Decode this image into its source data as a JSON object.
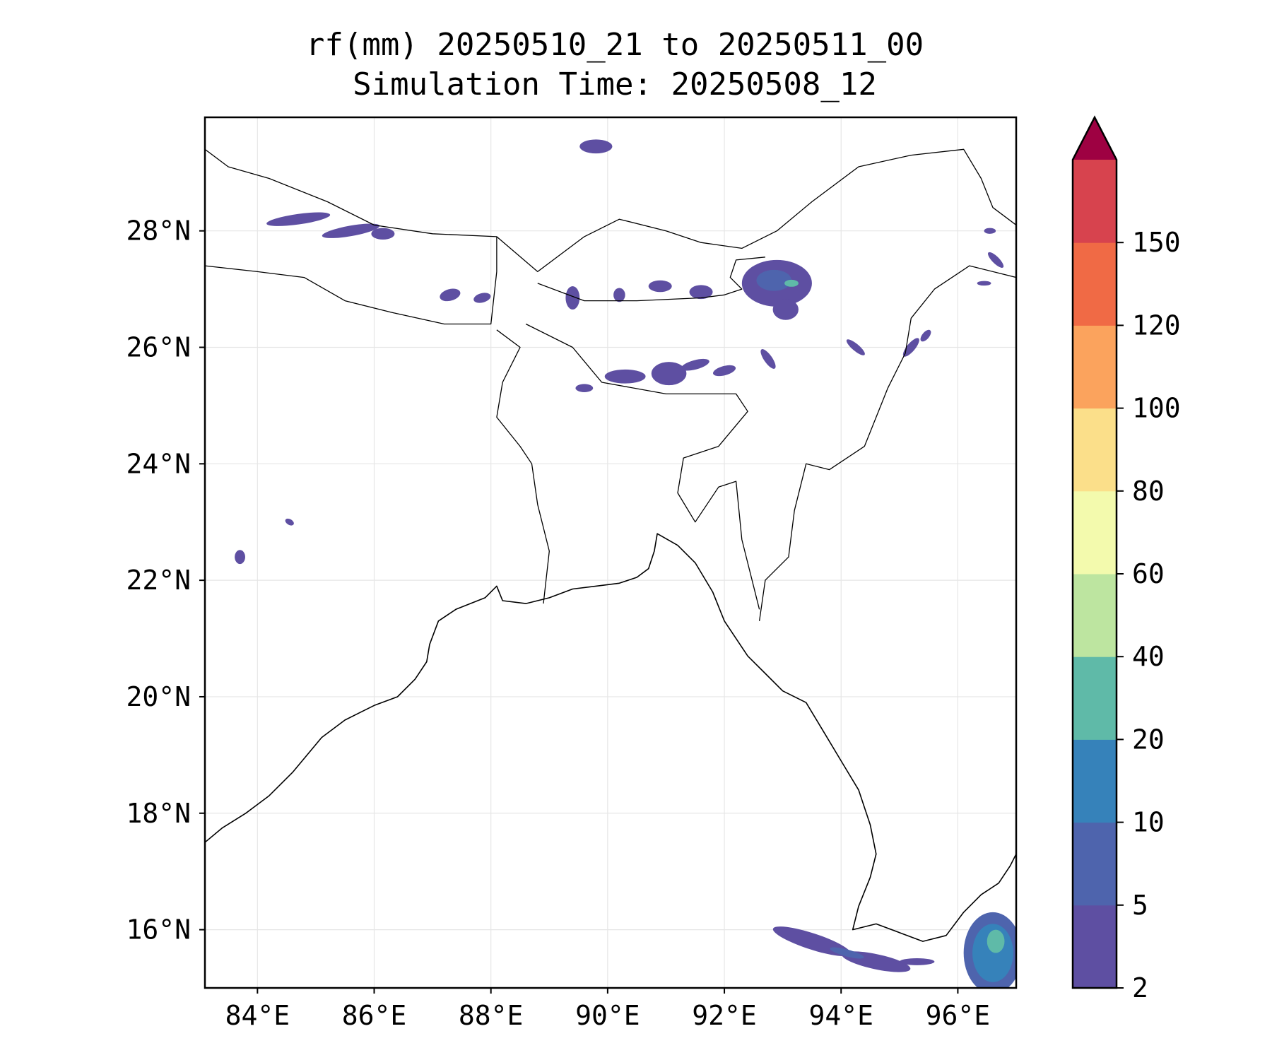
{
  "title": {
    "line1": "rf(mm) 20250510_21 to 20250511_00",
    "line2": "Simulation Time: 20250508_12"
  },
  "map": {
    "lon_range": [
      83.1,
      97.0
    ],
    "lat_range": [
      15.0,
      29.95
    ],
    "gridlines": true,
    "x_ticks": [
      {
        "value": 84,
        "label": "84°E"
      },
      {
        "value": 86,
        "label": "86°E"
      },
      {
        "value": 88,
        "label": "88°E"
      },
      {
        "value": 90,
        "label": "90°E"
      },
      {
        "value": 92,
        "label": "92°E"
      },
      {
        "value": 94,
        "label": "94°E"
      },
      {
        "value": 96,
        "label": "96°E"
      }
    ],
    "y_ticks": [
      {
        "value": 16,
        "label": "16°N"
      },
      {
        "value": 18,
        "label": "18°N"
      },
      {
        "value": 20,
        "label": "20°N"
      },
      {
        "value": 22,
        "label": "22°N"
      },
      {
        "value": 24,
        "label": "24°N"
      },
      {
        "value": 26,
        "label": "26°N"
      },
      {
        "value": 28,
        "label": "28°N"
      }
    ],
    "coastline": [
      [
        83.1,
        17.5
      ],
      [
        83.4,
        17.75
      ],
      [
        83.8,
        18.0
      ],
      [
        84.2,
        18.3
      ],
      [
        84.6,
        18.7
      ],
      [
        85.1,
        19.3
      ],
      [
        85.5,
        19.6
      ],
      [
        86.0,
        19.85
      ],
      [
        86.4,
        20.0
      ],
      [
        86.7,
        20.3
      ],
      [
        86.9,
        20.6
      ],
      [
        86.95,
        20.9
      ],
      [
        87.1,
        21.3
      ],
      [
        87.4,
        21.5
      ],
      [
        87.9,
        21.7
      ],
      [
        88.1,
        21.9
      ],
      [
        88.2,
        21.65
      ],
      [
        88.6,
        21.6
      ],
      [
        89.0,
        21.7
      ],
      [
        89.4,
        21.85
      ],
      [
        89.8,
        21.9
      ],
      [
        90.2,
        21.95
      ],
      [
        90.5,
        22.05
      ],
      [
        90.7,
        22.2
      ],
      [
        90.8,
        22.5
      ],
      [
        90.85,
        22.8
      ],
      [
        91.2,
        22.6
      ],
      [
        91.5,
        22.3
      ],
      [
        91.8,
        21.8
      ],
      [
        92.0,
        21.3
      ],
      [
        92.2,
        21.0
      ],
      [
        92.4,
        20.7
      ],
      [
        92.7,
        20.4
      ],
      [
        93.0,
        20.1
      ],
      [
        93.4,
        19.9
      ],
      [
        93.7,
        19.4
      ],
      [
        94.0,
        18.9
      ],
      [
        94.3,
        18.4
      ],
      [
        94.5,
        17.8
      ],
      [
        94.6,
        17.3
      ],
      [
        94.5,
        16.9
      ],
      [
        94.3,
        16.4
      ],
      [
        94.2,
        16.0
      ],
      [
        94.6,
        16.1
      ],
      [
        95.0,
        15.95
      ],
      [
        95.4,
        15.8
      ],
      [
        95.8,
        15.9
      ],
      [
        96.1,
        16.3
      ],
      [
        96.4,
        16.6
      ],
      [
        96.7,
        16.8
      ],
      [
        96.9,
        17.1
      ],
      [
        97.0,
        17.3
      ]
    ],
    "borders": [
      [
        [
          83.1,
          29.4
        ],
        [
          83.5,
          29.1
        ],
        [
          84.2,
          28.9
        ],
        [
          85.2,
          28.5
        ],
        [
          86.0,
          28.1
        ],
        [
          87.0,
          27.95
        ],
        [
          88.1,
          27.9
        ],
        [
          88.8,
          27.3
        ],
        [
          89.6,
          27.9
        ],
        [
          90.2,
          28.2
        ],
        [
          91.0,
          28.0
        ],
        [
          91.6,
          27.8
        ],
        [
          92.3,
          27.7
        ],
        [
          92.9,
          28.0
        ],
        [
          93.5,
          28.5
        ],
        [
          94.3,
          29.1
        ],
        [
          95.2,
          29.3
        ],
        [
          96.1,
          29.4
        ],
        [
          96.4,
          28.9
        ],
        [
          96.6,
          28.4
        ],
        [
          97.0,
          28.1
        ]
      ],
      [
        [
          83.1,
          27.4
        ],
        [
          84.0,
          27.3
        ],
        [
          84.8,
          27.2
        ],
        [
          85.5,
          26.8
        ],
        [
          86.3,
          26.6
        ],
        [
          87.2,
          26.4
        ],
        [
          88.0,
          26.4
        ],
        [
          88.1,
          27.3
        ],
        [
          88.1,
          27.9
        ]
      ],
      [
        [
          88.8,
          27.1
        ],
        [
          89.6,
          26.8
        ],
        [
          90.5,
          26.8
        ],
        [
          91.6,
          26.85
        ],
        [
          92.0,
          26.9
        ],
        [
          92.3,
          27.0
        ],
        [
          92.1,
          27.2
        ],
        [
          92.2,
          27.5
        ],
        [
          92.7,
          27.55
        ]
      ],
      [
        [
          97.0,
          27.2
        ],
        [
          96.2,
          27.4
        ],
        [
          95.6,
          27.0
        ],
        [
          95.2,
          26.5
        ],
        [
          95.1,
          25.9
        ],
        [
          94.8,
          25.3
        ],
        [
          94.4,
          24.3
        ],
        [
          93.8,
          23.9
        ],
        [
          93.4,
          24.0
        ],
        [
          93.2,
          23.2
        ],
        [
          93.1,
          22.4
        ],
        [
          92.7,
          22.0
        ],
        [
          92.6,
          21.3
        ]
      ],
      [
        [
          88.1,
          26.3
        ],
        [
          88.5,
          26.0
        ],
        [
          88.2,
          25.4
        ],
        [
          88.1,
          24.8
        ],
        [
          88.5,
          24.3
        ],
        [
          88.7,
          24.0
        ],
        [
          88.8,
          23.3
        ],
        [
          89.0,
          22.5
        ],
        [
          88.9,
          21.6
        ]
      ],
      [
        [
          88.6,
          26.4
        ],
        [
          89.4,
          26.0
        ],
        [
          89.9,
          25.4
        ],
        [
          91.0,
          25.2
        ],
        [
          92.2,
          25.2
        ],
        [
          92.4,
          24.9
        ],
        [
          91.9,
          24.3
        ],
        [
          91.3,
          24.1
        ],
        [
          91.2,
          23.5
        ],
        [
          91.5,
          23.0
        ],
        [
          91.9,
          23.6
        ],
        [
          92.2,
          23.7
        ],
        [
          92.3,
          22.7
        ],
        [
          92.6,
          21.5
        ]
      ]
    ]
  },
  "colorbar": {
    "levels": [
      "2",
      "5",
      "10",
      "20",
      "40",
      "60",
      "80",
      "100",
      "120",
      "150"
    ],
    "colors": [
      "#5e4fa2",
      "#4e64ad",
      "#3682ba",
      "#5fbaa8",
      "#bde5a0",
      "#f3faad",
      "#fbdf8a",
      "#fba35d",
      "#f06a45",
      "#d7434e"
    ],
    "extend_color": "#9e0142"
  },
  "rain_patches": [
    {
      "level": 0,
      "lon": 84.7,
      "lat": 28.2,
      "rx": 0.55,
      "ry": 0.09,
      "rot": -8
    },
    {
      "level": 0,
      "lon": 85.6,
      "lat": 28.0,
      "rx": 0.5,
      "ry": 0.09,
      "rot": -10
    },
    {
      "level": 0,
      "lon": 86.15,
      "lat": 27.95,
      "rx": 0.2,
      "ry": 0.1,
      "rot": 0
    },
    {
      "level": 0,
      "lon": 89.8,
      "lat": 29.45,
      "rx": 0.28,
      "ry": 0.12,
      "rot": 0
    },
    {
      "level": 0,
      "lon": 87.3,
      "lat": 26.9,
      "rx": 0.18,
      "ry": 0.1,
      "rot": -15
    },
    {
      "level": 0,
      "lon": 87.85,
      "lat": 26.85,
      "rx": 0.15,
      "ry": 0.08,
      "rot": -15
    },
    {
      "level": 0,
      "lon": 89.4,
      "lat": 26.85,
      "rx": 0.12,
      "ry": 0.2,
      "rot": 0
    },
    {
      "level": 0,
      "lon": 90.2,
      "lat": 26.9,
      "rx": 0.1,
      "ry": 0.12,
      "rot": 0
    },
    {
      "level": 0,
      "lon": 90.9,
      "lat": 27.05,
      "rx": 0.2,
      "ry": 0.1,
      "rot": 0
    },
    {
      "level": 0,
      "lon": 91.6,
      "lat": 26.95,
      "rx": 0.2,
      "ry": 0.12,
      "rot": 0
    },
    {
      "level": 0,
      "lon": 92.9,
      "lat": 27.1,
      "rx": 0.6,
      "ry": 0.4,
      "rot": 0
    },
    {
      "level": 0,
      "lon": 93.05,
      "lat": 26.65,
      "rx": 0.22,
      "ry": 0.18,
      "rot": 0
    },
    {
      "level": 1,
      "lon": 92.85,
      "lat": 27.15,
      "rx": 0.3,
      "ry": 0.18,
      "rot": 0
    },
    {
      "level": 3,
      "lon": 93.15,
      "lat": 27.1,
      "rx": 0.12,
      "ry": 0.06,
      "rot": 0
    },
    {
      "level": 0,
      "lon": 90.3,
      "lat": 25.5,
      "rx": 0.35,
      "ry": 0.12,
      "rot": 0
    },
    {
      "level": 0,
      "lon": 91.05,
      "lat": 25.55,
      "rx": 0.3,
      "ry": 0.2,
      "rot": 0
    },
    {
      "level": 0,
      "lon": 91.5,
      "lat": 25.7,
      "rx": 0.25,
      "ry": 0.08,
      "rot": -15
    },
    {
      "level": 0,
      "lon": 92.0,
      "lat": 25.6,
      "rx": 0.2,
      "ry": 0.08,
      "rot": -15
    },
    {
      "level": 0,
      "lon": 89.6,
      "lat": 25.3,
      "rx": 0.15,
      "ry": 0.07,
      "rot": 0
    },
    {
      "level": 0,
      "lon": 92.75,
      "lat": 25.8,
      "rx": 0.2,
      "ry": 0.07,
      "rot": 55
    },
    {
      "level": 0,
      "lon": 94.25,
      "lat": 26.0,
      "rx": 0.2,
      "ry": 0.06,
      "rot": 40
    },
    {
      "level": 0,
      "lon": 95.2,
      "lat": 26.0,
      "rx": 0.2,
      "ry": 0.07,
      "rot": -50
    },
    {
      "level": 0,
      "lon": 95.45,
      "lat": 26.2,
      "rx": 0.12,
      "ry": 0.06,
      "rot": -50
    },
    {
      "level": 0,
      "lon": 96.65,
      "lat": 27.5,
      "rx": 0.18,
      "ry": 0.06,
      "rot": 45
    },
    {
      "level": 0,
      "lon": 96.45,
      "lat": 27.1,
      "rx": 0.12,
      "ry": 0.04,
      "rot": 0
    },
    {
      "level": 0,
      "lon": 96.55,
      "lat": 28.0,
      "rx": 0.1,
      "ry": 0.05,
      "rot": 0
    },
    {
      "level": 0,
      "lon": 83.7,
      "lat": 22.4,
      "rx": 0.09,
      "ry": 0.12,
      "rot": 0
    },
    {
      "level": 0,
      "lon": 84.55,
      "lat": 23.0,
      "rx": 0.08,
      "ry": 0.05,
      "rot": 30
    },
    {
      "level": 0,
      "lon": 93.5,
      "lat": 15.8,
      "rx": 0.7,
      "ry": 0.14,
      "rot": 18
    },
    {
      "level": 0,
      "lon": 94.6,
      "lat": 15.45,
      "rx": 0.6,
      "ry": 0.13,
      "rot": 12
    },
    {
      "level": 1,
      "lon": 94.1,
      "lat": 15.6,
      "rx": 0.3,
      "ry": 0.06,
      "rot": 15
    },
    {
      "level": 0,
      "lon": 95.3,
      "lat": 15.45,
      "rx": 0.3,
      "ry": 0.06,
      "rot": 0
    },
    {
      "level": 1,
      "lon": 96.6,
      "lat": 15.6,
      "rx": 0.5,
      "ry": 0.7,
      "rot": 0
    },
    {
      "level": 2,
      "lon": 96.6,
      "lat": 15.6,
      "rx": 0.35,
      "ry": 0.5,
      "rot": 0
    },
    {
      "level": 3,
      "lon": 96.65,
      "lat": 15.8,
      "rx": 0.15,
      "ry": 0.2,
      "rot": 0
    }
  ]
}
